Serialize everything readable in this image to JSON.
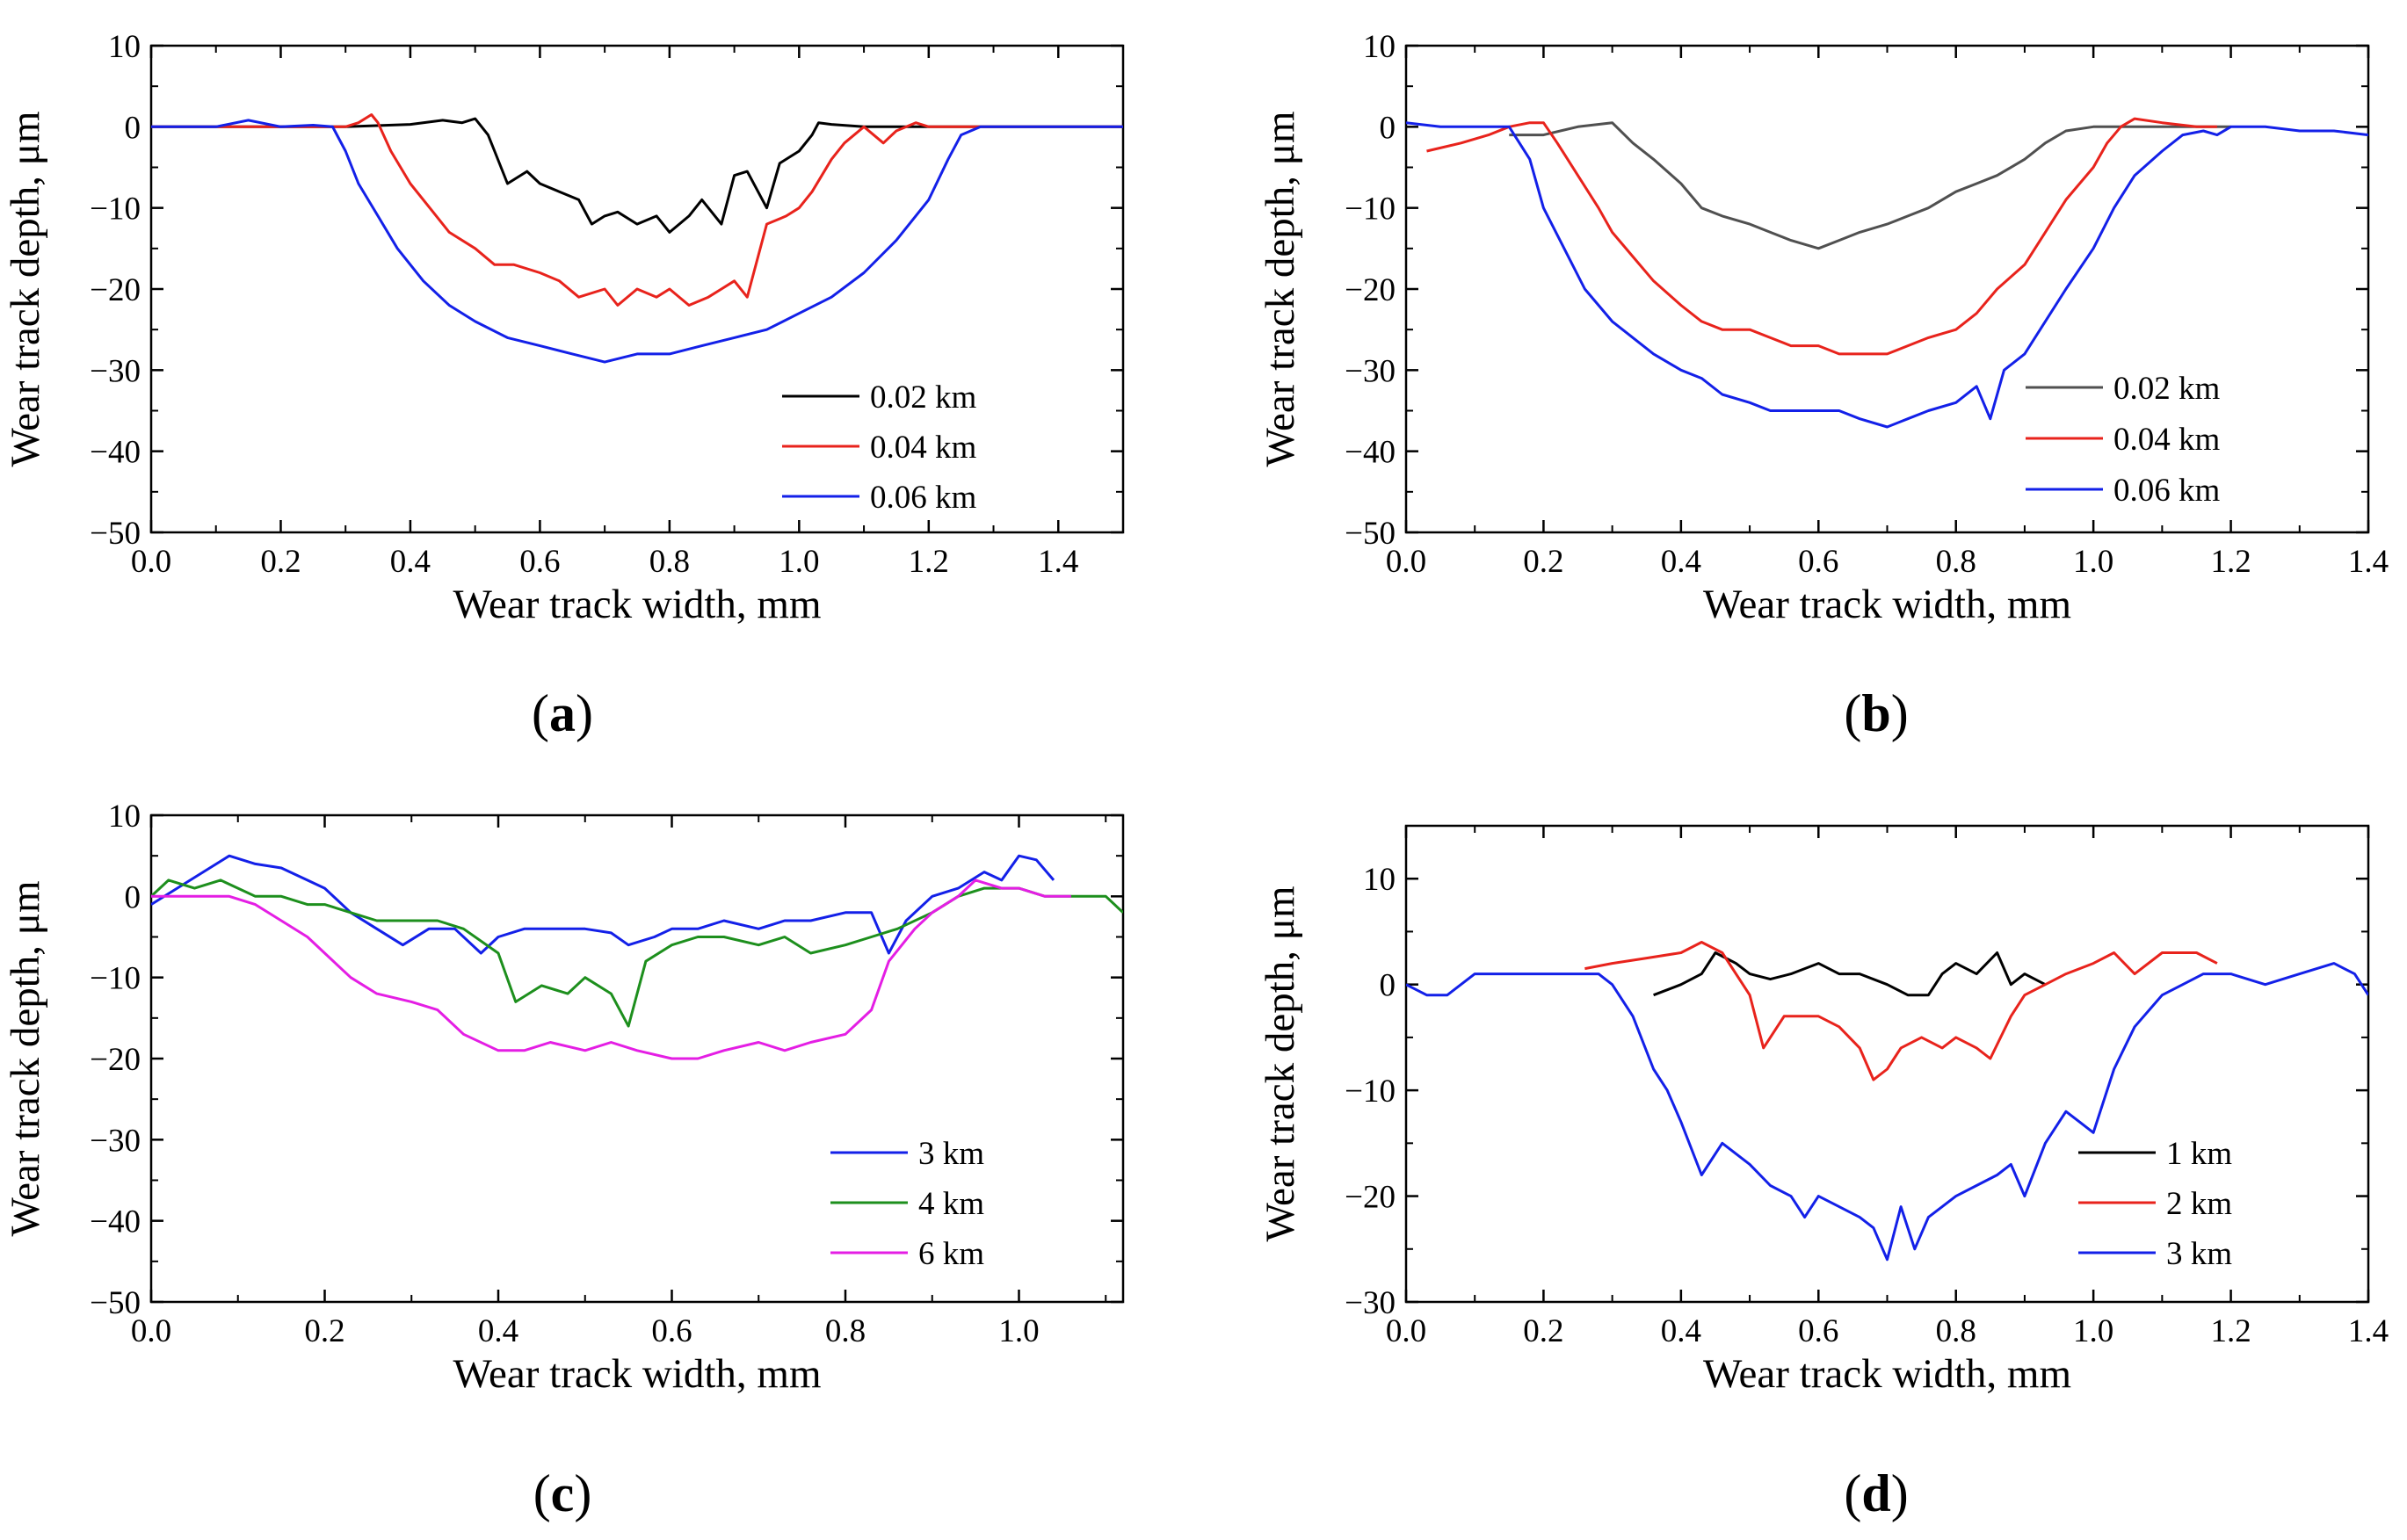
{
  "chart_data": [
    {
      "type": "line",
      "panel_label": {
        "open": "(",
        "letter": "a",
        "close": ")"
      },
      "xlabel": "Wear track width, mm",
      "ylabel": "Wear track depth, μm",
      "xlim": [
        0,
        1.5
      ],
      "ylim": [
        -50,
        10
      ],
      "x_ticks": [
        0.0,
        0.2,
        0.4,
        0.6,
        0.8,
        1.0,
        1.2,
        1.4
      ],
      "x_tick_labels": [
        "0.0",
        "0.2",
        "0.4",
        "0.6",
        "0.8",
        "1.0",
        "1.2",
        "1.4"
      ],
      "y_ticks": [
        -50,
        -40,
        -30,
        -20,
        -10,
        0,
        10
      ],
      "y_tick_labels": [
        "−50",
        "−40",
        "−30",
        "−20",
        "−10",
        "0",
        "10"
      ],
      "grid": false,
      "legend_position": "bottom-right",
      "series": [
        {
          "name": "0.02 km",
          "color": "#000000",
          "x": [
            0,
            0.1,
            0.2,
            0.3,
            0.4,
            0.45,
            0.48,
            0.5,
            0.52,
            0.53,
            0.55,
            0.58,
            0.6,
            0.63,
            0.66,
            0.68,
            0.7,
            0.72,
            0.75,
            0.78,
            0.8,
            0.83,
            0.85,
            0.88,
            0.9,
            0.92,
            0.95,
            0.97,
            1.0,
            1.02,
            1.03,
            1.05,
            1.1,
            1.2,
            1.3,
            1.4,
            1.5
          ],
          "y": [
            0,
            0,
            0,
            0,
            0.3,
            0.8,
            0.5,
            1,
            -1,
            -3,
            -7,
            -5.5,
            -7,
            -8,
            -9,
            -12,
            -11,
            -10.5,
            -12,
            -11,
            -13,
            -11,
            -9,
            -12,
            -6,
            -5.5,
            -10,
            -4.5,
            -3,
            -1,
            0.5,
            0.3,
            0,
            0,
            0,
            0,
            0
          ]
        },
        {
          "name": "0.04 km",
          "color": "#e8231c",
          "x": [
            0,
            0.1,
            0.2,
            0.28,
            0.3,
            0.32,
            0.34,
            0.35,
            0.37,
            0.4,
            0.43,
            0.46,
            0.5,
            0.53,
            0.56,
            0.6,
            0.63,
            0.66,
            0.7,
            0.72,
            0.75,
            0.78,
            0.8,
            0.83,
            0.86,
            0.88,
            0.9,
            0.92,
            0.95,
            0.98,
            1.0,
            1.02,
            1.05,
            1.07,
            1.1,
            1.13,
            1.15,
            1.18,
            1.2,
            1.25,
            1.3,
            1.4,
            1.5
          ],
          "y": [
            0,
            0,
            0,
            0,
            0,
            0.5,
            1.5,
            0.5,
            -3,
            -7,
            -10,
            -13,
            -15,
            -17,
            -17,
            -18,
            -19,
            -21,
            -20,
            -22,
            -20,
            -21,
            -20,
            -22,
            -21,
            -20,
            -19,
            -21,
            -12,
            -11,
            -10,
            -8,
            -4,
            -2,
            0,
            -2,
            -0.5,
            0.5,
            0,
            0,
            0,
            0,
            0
          ]
        },
        {
          "name": "0.06 km",
          "color": "#1320e8",
          "x": [
            0,
            0.1,
            0.15,
            0.2,
            0.25,
            0.28,
            0.3,
            0.32,
            0.35,
            0.38,
            0.42,
            0.46,
            0.5,
            0.55,
            0.6,
            0.65,
            0.7,
            0.75,
            0.8,
            0.85,
            0.9,
            0.95,
            1.0,
            1.05,
            1.1,
            1.15,
            1.2,
            1.23,
            1.25,
            1.28,
            1.3,
            1.35,
            1.4,
            1.5
          ],
          "y": [
            0,
            0,
            0.8,
            0,
            0.2,
            0,
            -3,
            -7,
            -11,
            -15,
            -19,
            -22,
            -24,
            -26,
            -27,
            -28,
            -29,
            -28,
            -28,
            -27,
            -26,
            -25,
            -23,
            -21,
            -18,
            -14,
            -9,
            -4,
            -1,
            0,
            0,
            0,
            0,
            0
          ]
        }
      ]
    },
    {
      "type": "line",
      "panel_label": {
        "open": "(",
        "letter": "b",
        "close": ")"
      },
      "xlabel": "Wear track width, mm",
      "ylabel": "Wear track depth, μm",
      "xlim": [
        0,
        1.4
      ],
      "ylim": [
        -50,
        10
      ],
      "x_ticks": [
        0.0,
        0.2,
        0.4,
        0.6,
        0.8,
        1.0,
        1.2,
        1.4
      ],
      "x_tick_labels": [
        "0.0",
        "0.2",
        "0.4",
        "0.6",
        "0.8",
        "1.0",
        "1.2",
        "1.4"
      ],
      "y_ticks": [
        -50,
        -40,
        -30,
        -20,
        -10,
        0,
        10
      ],
      "y_tick_labels": [
        "−50",
        "−40",
        "−30",
        "−20",
        "−10",
        "0",
        "10"
      ],
      "grid": false,
      "legend_position": "bottom-right",
      "series": [
        {
          "name": "0.02 km",
          "color": "#505050",
          "x": [
            0.15,
            0.2,
            0.25,
            0.3,
            0.33,
            0.36,
            0.4,
            0.43,
            0.46,
            0.5,
            0.53,
            0.56,
            0.6,
            0.63,
            0.66,
            0.7,
            0.73,
            0.76,
            0.8,
            0.83,
            0.86,
            0.9,
            0.93,
            0.96,
            1.0,
            1.05,
            1.1,
            1.15,
            1.2
          ],
          "y": [
            -1,
            -1,
            0,
            0.5,
            -2,
            -4,
            -7,
            -10,
            -11,
            -12,
            -13,
            -14,
            -15,
            -14,
            -13,
            -12,
            -11,
            -10,
            -8,
            -7,
            -6,
            -4,
            -2,
            -0.5,
            0,
            0,
            0,
            0,
            0
          ]
        },
        {
          "name": "0.04 km",
          "color": "#e8231c",
          "x": [
            0.03,
            0.08,
            0.12,
            0.15,
            0.18,
            0.2,
            0.22,
            0.25,
            0.28,
            0.3,
            0.33,
            0.36,
            0.4,
            0.43,
            0.46,
            0.5,
            0.53,
            0.56,
            0.6,
            0.63,
            0.66,
            0.7,
            0.73,
            0.76,
            0.8,
            0.83,
            0.86,
            0.9,
            0.93,
            0.96,
            1.0,
            1.02,
            1.04,
            1.06,
            1.1,
            1.15,
            1.18
          ],
          "y": [
            -3,
            -2,
            -1,
            0,
            0.5,
            0.5,
            -2,
            -6,
            -10,
            -13,
            -16,
            -19,
            -22,
            -24,
            -25,
            -25,
            -26,
            -27,
            -27,
            -28,
            -28,
            -28,
            -27,
            -26,
            -25,
            -23,
            -20,
            -17,
            -13,
            -9,
            -5,
            -2,
            0,
            1,
            0.5,
            0,
            0
          ]
        },
        {
          "name": "0.06 km",
          "color": "#1320e8",
          "x": [
            0,
            0.05,
            0.1,
            0.15,
            0.18,
            0.2,
            0.23,
            0.26,
            0.3,
            0.33,
            0.36,
            0.4,
            0.43,
            0.46,
            0.5,
            0.53,
            0.56,
            0.6,
            0.63,
            0.66,
            0.7,
            0.73,
            0.76,
            0.8,
            0.83,
            0.85,
            0.87,
            0.9,
            0.93,
            0.96,
            1.0,
            1.03,
            1.06,
            1.1,
            1.13,
            1.16,
            1.18,
            1.2,
            1.25,
            1.3,
            1.35,
            1.4
          ],
          "y": [
            0.5,
            0,
            0,
            0,
            -4,
            -10,
            -15,
            -20,
            -24,
            -26,
            -28,
            -30,
            -31,
            -33,
            -34,
            -35,
            -35,
            -35,
            -35,
            -36,
            -37,
            -36,
            -35,
            -34,
            -32,
            -36,
            -30,
            -28,
            -24,
            -20,
            -15,
            -10,
            -6,
            -3,
            -1,
            -0.5,
            -1,
            0,
            0,
            -0.5,
            -0.5,
            -1
          ]
        }
      ]
    },
    {
      "type": "line",
      "panel_label": {
        "open": "(",
        "letter": "c",
        "close": ")"
      },
      "xlabel": "Wear track width, mm",
      "ylabel": "Wear track depth, μm",
      "xlim": [
        0,
        1.12
      ],
      "ylim": [
        -50,
        10
      ],
      "x_ticks": [
        0.0,
        0.2,
        0.4,
        0.6,
        0.8,
        1.0
      ],
      "x_tick_labels": [
        "0.0",
        "0.2",
        "0.4",
        "0.6",
        "0.8",
        "1.0"
      ],
      "y_ticks": [
        -50,
        -40,
        -30,
        -20,
        -10,
        0,
        10
      ],
      "y_tick_labels": [
        "−50",
        "−40",
        "−30",
        "−20",
        "−10",
        "0",
        "10"
      ],
      "grid": false,
      "legend_position": "bottom-right",
      "series": [
        {
          "name": "3 km",
          "color": "#1320e8",
          "x": [
            0,
            0.03,
            0.06,
            0.09,
            0.12,
            0.15,
            0.18,
            0.2,
            0.23,
            0.26,
            0.29,
            0.32,
            0.35,
            0.38,
            0.4,
            0.43,
            0.46,
            0.5,
            0.53,
            0.55,
            0.58,
            0.6,
            0.63,
            0.66,
            0.7,
            0.73,
            0.76,
            0.8,
            0.83,
            0.85,
            0.87,
            0.9,
            0.93,
            0.96,
            0.98,
            1.0,
            1.02,
            1.04
          ],
          "y": [
            -1,
            1,
            3,
            5,
            4,
            3.5,
            2,
            1,
            -2,
            -4,
            -6,
            -4,
            -4,
            -7,
            -5,
            -4,
            -4,
            -4,
            -4.5,
            -6,
            -5,
            -4,
            -4,
            -3,
            -4,
            -3,
            -3,
            -2,
            -2,
            -7,
            -3,
            0,
            1,
            3,
            2,
            5,
            4.5,
            2
          ]
        },
        {
          "name": "4 km",
          "color": "#1d8f1d",
          "x": [
            0,
            0.02,
            0.05,
            0.08,
            0.1,
            0.12,
            0.15,
            0.18,
            0.2,
            0.23,
            0.26,
            0.3,
            0.33,
            0.36,
            0.4,
            0.42,
            0.45,
            0.48,
            0.5,
            0.53,
            0.55,
            0.57,
            0.6,
            0.63,
            0.66,
            0.7,
            0.73,
            0.76,
            0.8,
            0.83,
            0.86,
            0.9,
            0.93,
            0.96,
            1.0,
            1.03,
            1.06,
            1.1,
            1.12
          ],
          "y": [
            0,
            2,
            1,
            2,
            1,
            0,
            0,
            -1,
            -1,
            -2,
            -3,
            -3,
            -3,
            -4,
            -7,
            -13,
            -11,
            -12,
            -10,
            -12,
            -16,
            -8,
            -6,
            -5,
            -5,
            -6,
            -5,
            -7,
            -6,
            -5,
            -4,
            -2,
            0,
            1,
            1,
            0,
            0,
            0,
            -2
          ]
        },
        {
          "name": "6 km",
          "color": "#e41ee4",
          "x": [
            0,
            0.03,
            0.06,
            0.09,
            0.12,
            0.15,
            0.18,
            0.2,
            0.23,
            0.26,
            0.3,
            0.33,
            0.36,
            0.4,
            0.43,
            0.46,
            0.5,
            0.53,
            0.56,
            0.6,
            0.63,
            0.66,
            0.7,
            0.73,
            0.76,
            0.8,
            0.83,
            0.85,
            0.88,
            0.9,
            0.93,
            0.95,
            0.98,
            1.0,
            1.03,
            1.06
          ],
          "y": [
            0,
            0,
            0,
            0,
            -1,
            -3,
            -5,
            -7,
            -10,
            -12,
            -13,
            -14,
            -17,
            -19,
            -19,
            -18,
            -19,
            -18,
            -19,
            -20,
            -20,
            -19,
            -18,
            -19,
            -18,
            -17,
            -14,
            -8,
            -4,
            -2,
            0,
            2,
            1,
            1,
            0,
            0
          ]
        }
      ]
    },
    {
      "type": "line",
      "panel_label": {
        "open": "(",
        "letter": "d",
        "close": ")"
      },
      "xlabel": "Wear track width, mm",
      "ylabel": "Wear track depth, μm",
      "xlim": [
        0,
        1.4
      ],
      "ylim": [
        -30,
        15
      ],
      "x_ticks": [
        0.0,
        0.2,
        0.4,
        0.6,
        0.8,
        1.0,
        1.2,
        1.4
      ],
      "x_tick_labels": [
        "0.0",
        "0.2",
        "0.4",
        "0.6",
        "0.8",
        "1.0",
        "1.2",
        "1.4"
      ],
      "y_ticks": [
        -30,
        -20,
        -10,
        0,
        10
      ],
      "y_tick_labels": [
        "−30",
        "−20",
        "−10",
        "0",
        "10"
      ],
      "grid": false,
      "legend_position": "bottom-right",
      "series": [
        {
          "name": "1 km",
          "color": "#000000",
          "x": [
            0.36,
            0.4,
            0.43,
            0.45,
            0.48,
            0.5,
            0.53,
            0.56,
            0.6,
            0.63,
            0.66,
            0.7,
            0.73,
            0.76,
            0.78,
            0.8,
            0.83,
            0.86,
            0.88,
            0.9,
            0.93
          ],
          "y": [
            -1,
            0,
            1,
            3,
            2,
            1,
            0.5,
            1,
            2,
            1,
            1,
            0,
            -1,
            -1,
            1,
            2,
            1,
            3,
            0,
            1,
            0
          ]
        },
        {
          "name": "2 km",
          "color": "#e8231c",
          "x": [
            0.26,
            0.3,
            0.35,
            0.4,
            0.43,
            0.46,
            0.5,
            0.52,
            0.55,
            0.58,
            0.6,
            0.63,
            0.66,
            0.68,
            0.7,
            0.72,
            0.75,
            0.78,
            0.8,
            0.83,
            0.85,
            0.88,
            0.9,
            0.93,
            0.96,
            1.0,
            1.03,
            1.06,
            1.1,
            1.15,
            1.18
          ],
          "y": [
            1.5,
            2,
            2.5,
            3,
            4,
            3,
            -1,
            -6,
            -3,
            -3,
            -3,
            -4,
            -6,
            -9,
            -8,
            -6,
            -5,
            -6,
            -5,
            -6,
            -7,
            -3,
            -1,
            0,
            1,
            2,
            3,
            1,
            3,
            3,
            2
          ]
        },
        {
          "name": "3 km",
          "color": "#1320e8",
          "x": [
            0,
            0.03,
            0.06,
            0.1,
            0.15,
            0.2,
            0.25,
            0.28,
            0.3,
            0.33,
            0.36,
            0.38,
            0.4,
            0.43,
            0.46,
            0.5,
            0.53,
            0.56,
            0.58,
            0.6,
            0.63,
            0.66,
            0.68,
            0.7,
            0.72,
            0.74,
            0.76,
            0.78,
            0.8,
            0.83,
            0.86,
            0.88,
            0.9,
            0.93,
            0.96,
            0.98,
            1.0,
            1.03,
            1.06,
            1.1,
            1.13,
            1.16,
            1.2,
            1.25,
            1.3,
            1.35,
            1.38,
            1.4
          ],
          "y": [
            0,
            -1,
            -1,
            1,
            1,
            1,
            1,
            1,
            0,
            -3,
            -8,
            -10,
            -13,
            -18,
            -15,
            -17,
            -19,
            -20,
            -22,
            -20,
            -21,
            -22,
            -23,
            -26,
            -21,
            -25,
            -22,
            -21,
            -20,
            -19,
            -18,
            -17,
            -20,
            -15,
            -12,
            -13,
            -14,
            -8,
            -4,
            -1,
            0,
            1,
            1,
            0,
            1,
            2,
            1,
            -1
          ]
        }
      ]
    }
  ]
}
